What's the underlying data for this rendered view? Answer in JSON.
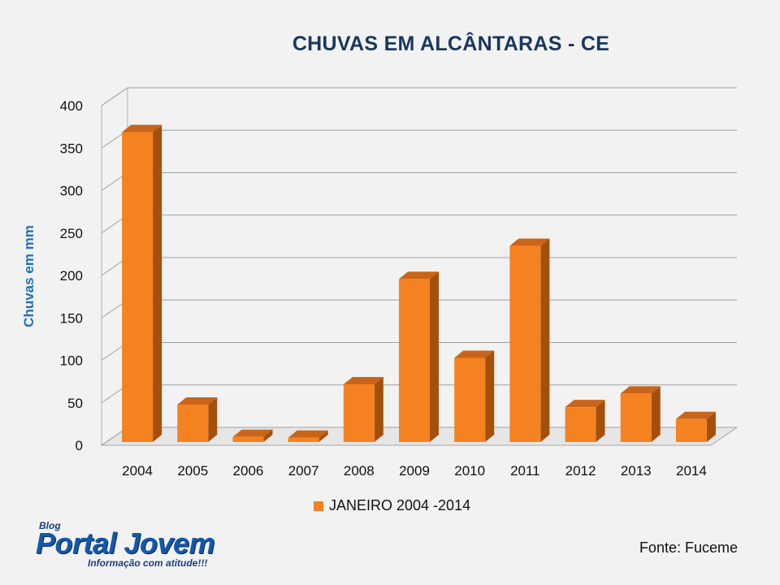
{
  "chart_data": {
    "type": "bar",
    "title": "CHUVAS EM ALCÂNTARAS - CE",
    "ylabel": "Chuvas em mm",
    "xlabel": "",
    "categories": [
      "2004",
      "2005",
      "2006",
      "2007",
      "2008",
      "2009",
      "2010",
      "2011",
      "2012",
      "2013",
      "2014"
    ],
    "series": [
      {
        "name": "JANEIRO 2004 -2014",
        "values": [
          365,
          44,
          6,
          5,
          68,
          192,
          99,
          231,
          41,
          57,
          27
        ]
      }
    ],
    "ylim": [
      0,
      400
    ],
    "yticks": [
      0,
      50,
      100,
      150,
      200,
      250,
      300,
      350,
      400
    ],
    "grid": true,
    "legend_position": "bottom",
    "style": "3d-bar",
    "colors": {
      "bar_front": "#f58220",
      "bar_side": "#a44f0c",
      "bar_top": "#c9651a"
    }
  },
  "source": "Fonte: Fuceme",
  "logo": {
    "small_label": "Blog",
    "name": "Portal Jovem",
    "tagline": "Informação com atitude!!!"
  }
}
